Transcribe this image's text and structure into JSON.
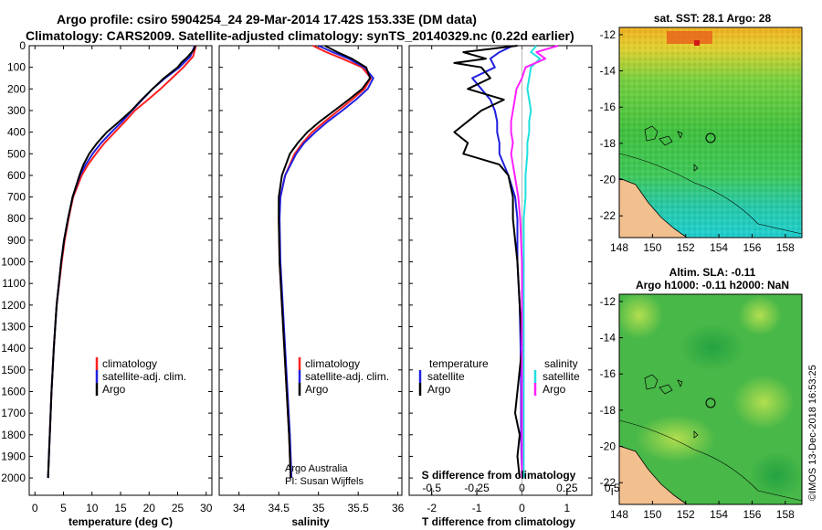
{
  "header": {
    "line1": "Argo profile: csiro 5904254_24 29-Mar-2014 17.42S 153.33E (DM data)",
    "line2": "Climatology: CARS2009. Satellite-adjusted climatology: synTS_20140329.nc (0.22d earlier)"
  },
  "colors": {
    "climatology": "#ff2020",
    "satellite": "#2020e0",
    "argo": "#000000",
    "sat_salinity": "#20e0e0",
    "argo_salinity": "#ff20ff"
  },
  "chart_data": [
    {
      "type": "line",
      "name": "temperature-profile",
      "xlabel": "temperature (deg C)",
      "ylabel": "depth",
      "xlim": [
        -1,
        31
      ],
      "ylim": [
        2080,
        0
      ],
      "xticks": [
        "0",
        "5",
        "10",
        "15",
        "20",
        "25",
        "30"
      ],
      "yticks": [
        "0",
        "100",
        "200",
        "300",
        "400",
        "500",
        "600",
        "700",
        "800",
        "900",
        "1000",
        "1100",
        "1200",
        "1300",
        "1400",
        "1500",
        "1600",
        "1700",
        "1800",
        "1900",
        "2000"
      ],
      "legend": [
        "climatology",
        "satellite-adj. clim.",
        "Argo"
      ],
      "series": [
        {
          "name": "climatology",
          "depth": [
            0,
            50,
            100,
            150,
            200,
            250,
            300,
            350,
            400,
            450,
            500,
            550,
            600,
            700,
            800,
            900,
            1000,
            1200,
            1400,
            1600,
            1800,
            2000
          ],
          "values": [
            28.2,
            27.7,
            26.0,
            24.0,
            22.0,
            19.8,
            17.5,
            15.8,
            14.0,
            12.2,
            10.7,
            9.3,
            8.2,
            6.7,
            5.9,
            5.2,
            4.7,
            3.8,
            3.3,
            2.9,
            2.6,
            2.3
          ]
        },
        {
          "name": "satellite",
          "depth": [
            0,
            50,
            100,
            150,
            200,
            250,
            300,
            350,
            400,
            450,
            500,
            550,
            600,
            700,
            800,
            900,
            1000,
            1200,
            1400,
            1600,
            1800,
            2000
          ],
          "values": [
            28.0,
            27.2,
            25.3,
            22.8,
            20.6,
            18.8,
            17.0,
            15.3,
            13.4,
            11.6,
            10.1,
            8.9,
            7.9,
            6.6,
            5.8,
            5.1,
            4.6,
            3.8,
            3.3,
            2.9,
            2.6,
            2.3
          ]
        },
        {
          "name": "Argo",
          "depth": [
            0,
            20,
            50,
            80,
            100,
            150,
            200,
            250,
            300,
            350,
            400,
            450,
            500,
            550,
            600,
            700,
            800,
            900,
            1000,
            1200,
            1400,
            1600,
            1800,
            2000
          ],
          "values": [
            28.1,
            27.8,
            26.8,
            25.6,
            25.0,
            22.6,
            20.6,
            18.7,
            16.9,
            14.8,
            12.6,
            10.9,
            9.5,
            8.5,
            7.8,
            6.6,
            5.8,
            5.1,
            4.6,
            3.8,
            3.3,
            2.9,
            2.6,
            2.3
          ]
        }
      ]
    },
    {
      "type": "line",
      "name": "salinity-profile",
      "xlabel": "salinity",
      "ylabel": "depth",
      "xlim": [
        33.75,
        36.05
      ],
      "ylim": [
        2080,
        0
      ],
      "xticks": [
        "34",
        "34.5",
        "35",
        "35.5",
        "36"
      ],
      "legend": [
        "climatology",
        "satellite-adj. clim.",
        "Argo"
      ],
      "annotation": [
        "Argo Australia",
        "PI: Susan Wijffels"
      ],
      "series": [
        {
          "name": "climatology",
          "depth": [
            0,
            30,
            60,
            100,
            150,
            200,
            250,
            300,
            350,
            400,
            450,
            500,
            600,
            700,
            800,
            1000,
            1200,
            1400,
            1600,
            1800,
            2000
          ],
          "values": [
            34.93,
            35.1,
            35.3,
            35.55,
            35.66,
            35.58,
            35.42,
            35.25,
            35.08,
            34.92,
            34.8,
            34.7,
            34.58,
            34.52,
            34.5,
            34.51,
            34.54,
            34.57,
            34.6,
            34.63,
            34.65
          ]
        },
        {
          "name": "satellite",
          "depth": [
            0,
            30,
            60,
            100,
            150,
            200,
            250,
            300,
            350,
            400,
            450,
            500,
            600,
            700,
            800,
            1000,
            1200,
            1400,
            1600,
            1800,
            2000
          ],
          "values": [
            35.0,
            35.18,
            35.38,
            35.58,
            35.69,
            35.62,
            35.47,
            35.3,
            35.12,
            34.96,
            34.82,
            34.72,
            34.58,
            34.52,
            34.51,
            34.52,
            34.55,
            34.58,
            34.61,
            34.64,
            34.66
          ]
        },
        {
          "name": "Argo",
          "depth": [
            0,
            30,
            60,
            100,
            150,
            200,
            250,
            300,
            350,
            400,
            450,
            500,
            600,
            700,
            800,
            1000,
            1200,
            1400,
            1600,
            1800,
            2000
          ],
          "values": [
            35.08,
            35.24,
            35.42,
            35.6,
            35.65,
            35.55,
            35.38,
            35.2,
            35.02,
            34.86,
            34.74,
            34.64,
            34.54,
            34.5,
            34.5,
            34.51,
            34.54,
            34.57,
            34.6,
            34.63,
            34.65
          ]
        }
      ]
    },
    {
      "type": "line",
      "name": "difference-profile",
      "xlabel": "T difference from climatology",
      "ylabel": "depth",
      "xlim": [
        -2.5,
        1.55
      ],
      "ylim": [
        2080,
        0
      ],
      "xticks": [
        "-2",
        "-1",
        "0",
        "1"
      ],
      "s_axis_label": "S difference from climatology",
      "s_xticks": [
        "-0.5",
        "-0.25",
        "0",
        "0.25",
        "0.5"
      ],
      "s_xlim": [
        -0.625,
        0.3875
      ],
      "legend_titles": [
        "temperature",
        "salinity"
      ],
      "legend_left": [
        "satellite",
        "Argo"
      ],
      "legend_right": [
        "satellite",
        "Argo"
      ],
      "series": [
        {
          "name": "T satellite",
          "axis": "T",
          "depth": [
            0,
            30,
            60,
            100,
            150,
            200,
            250,
            300,
            350,
            400,
            450,
            500,
            550,
            600,
            700,
            800,
            900,
            1000,
            1200,
            1400,
            1600,
            1800,
            2000
          ],
          "values": [
            -0.2,
            -0.5,
            -0.7,
            -0.6,
            -1.1,
            -0.9,
            -0.7,
            -0.6,
            -0.55,
            -0.55,
            -0.5,
            -0.5,
            -0.4,
            -0.3,
            -0.15,
            -0.1,
            -0.1,
            -0.1,
            -0.05,
            -0.03,
            -0.02,
            -0.02,
            0
          ]
        },
        {
          "name": "T Argo",
          "axis": "T",
          "depth": [
            0,
            30,
            60,
            80,
            100,
            150,
            200,
            250,
            300,
            350,
            400,
            450,
            500,
            550,
            600,
            700,
            800,
            900,
            1000,
            1200,
            1400,
            1600,
            1700,
            1800,
            1900,
            2000
          ],
          "values": [
            -0.1,
            -1.3,
            -0.8,
            -1.5,
            -0.9,
            -0.7,
            -1.2,
            -0.4,
            -0.9,
            -1.2,
            -1.5,
            -1.2,
            -1.3,
            -0.5,
            -0.3,
            -0.2,
            -0.2,
            -0.15,
            -0.1,
            -0.05,
            0,
            -0.1,
            -0.15,
            -0.05,
            -0.1,
            -0.05
          ]
        },
        {
          "name": "S satellite",
          "axis": "S",
          "depth": [
            0,
            30,
            60,
            100,
            150,
            200,
            250,
            300,
            350,
            400,
            450,
            500,
            600,
            700,
            800,
            1000,
            1200,
            1400,
            1600,
            1800,
            2000
          ],
          "values": [
            0.08,
            0.05,
            0.1,
            0.05,
            0.04,
            0.03,
            0.04,
            0.05,
            0.04,
            0.04,
            0.03,
            0.03,
            0.02,
            0.02,
            0.01,
            0.01,
            0.01,
            0.01,
            0.01,
            0.01,
            0.01
          ]
        },
        {
          "name": "S Argo",
          "axis": "S",
          "depth": [
            0,
            30,
            60,
            100,
            150,
            200,
            250,
            300,
            350,
            400,
            450,
            500,
            600,
            700,
            800,
            1000,
            1200,
            1400,
            1600,
            1800,
            2000
          ],
          "values": [
            0.2,
            0.08,
            0.13,
            0.02,
            0.0,
            -0.03,
            -0.04,
            -0.05,
            -0.06,
            -0.06,
            -0.05,
            -0.06,
            -0.04,
            -0.02,
            -0.01,
            0.0,
            0.0,
            0.0,
            0.0,
            0.0,
            0.0
          ]
        }
      ]
    }
  ],
  "maps": {
    "sst": {
      "title": "sat. SST: 28.1  Argo: 28",
      "yticks": [
        "-12",
        "-14",
        "-16",
        "-18",
        "-20",
        "-22"
      ],
      "xticks": [
        "148",
        "150",
        "152",
        "154",
        "156",
        "158"
      ],
      "lon_range": [
        148,
        159
      ],
      "lat_range": [
        -23.2,
        -11.6
      ],
      "argo_position": {
        "lon": 153.33,
        "lat": -17.42
      }
    },
    "sla": {
      "title1": "Altim. SLA: -0.11",
      "title2": "Argo h1000: -0.11  h2000: NaN",
      "yticks": [
        "-12",
        "-14",
        "-16",
        "-18",
        "-20",
        "-22"
      ],
      "xticks": [
        "148",
        "150",
        "152",
        "154",
        "156",
        "158"
      ],
      "lon_range": [
        148,
        159
      ],
      "lat_range": [
        -23.2,
        -11.6
      ],
      "argo_position": {
        "lon": 153.33,
        "lat": -17.42
      }
    }
  },
  "footer": {
    "stamp": "©IMOS 13-Dec-2018 16:53:25"
  }
}
